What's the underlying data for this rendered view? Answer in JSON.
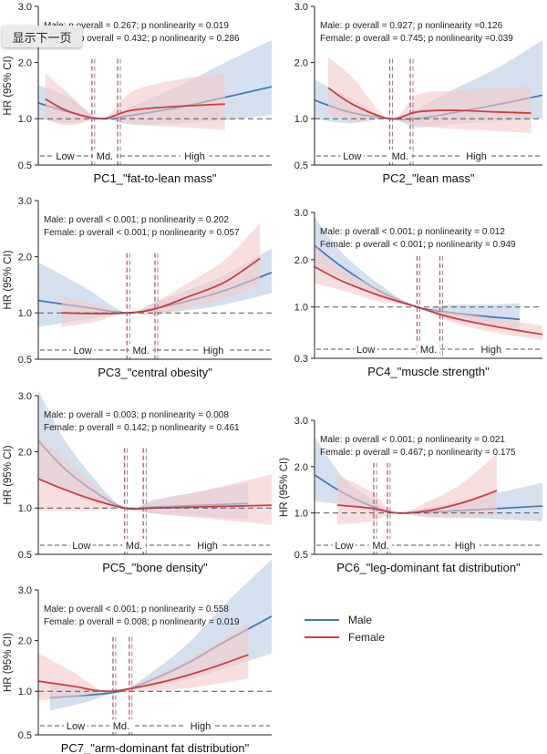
{
  "overlay_button": "显示下一页",
  "colors": {
    "male": "#4a78b5",
    "female": "#c94040",
    "male_band": "#c7d5e8",
    "female_band": "#f3c9c9"
  },
  "legend": [
    {
      "name": "Male",
      "color": "#4a78b5"
    },
    {
      "name": "Female",
      "color": "#c94040"
    }
  ],
  "chart_data": [
    {
      "type": "line",
      "title": "PC1_\"fat-to-lean mass\"",
      "ylabel": "HR (95% CI)",
      "ylim": [
        0.5,
        3.0
      ],
      "yticks": [
        "0.5",
        "1.0",
        "2.0",
        "3.0"
      ],
      "male_stats": "Male: p overall = 0.267; p nonlinearity = 0.019",
      "female_stats": "Female: p overall = 0.432; p nonlinearity = 0.286",
      "regions": [
        "Low",
        "Md.",
        "High"
      ],
      "series": [
        {
          "name": "Male",
          "x": [
            0,
            0.13,
            0.27,
            0.4,
            0.6,
            0.8,
            1.0
          ],
          "values": [
            1.28,
            1.12,
            1.0,
            1.06,
            1.2,
            1.38,
            1.57
          ],
          "lower": [
            1.0,
            0.92,
            1.0,
            0.9,
            0.92,
            0.97,
            1.07
          ],
          "upper": [
            1.6,
            1.38,
            1.0,
            1.22,
            1.58,
            2.0,
            2.4
          ]
        },
        {
          "name": "Female",
          "x": [
            0.03,
            0.13,
            0.27,
            0.4,
            0.6,
            0.8
          ],
          "values": [
            1.35,
            1.13,
            1.0,
            1.15,
            1.22,
            1.26
          ],
          "lower": [
            1.0,
            0.88,
            1.0,
            0.9,
            0.85,
            0.8
          ],
          "upper": [
            1.82,
            1.45,
            1.0,
            1.48,
            1.7,
            1.8
          ]
        }
      ]
    },
    {
      "type": "line",
      "title": "PC2_\"lean mass\"",
      "ylabel": "",
      "ylim": [
        0.5,
        3.0
      ],
      "yticks": [
        "0.5",
        "1.0",
        "2.0",
        "3.0"
      ],
      "male_stats": "Male: p overall = 0.927; p nonlinearity =0.126",
      "female_stats": "Female: p overall = 0.745; p nonlinearity =0.039",
      "regions": [
        "Low",
        "Md.",
        "High"
      ],
      "series": [
        {
          "name": "Male",
          "x": [
            0,
            0.15,
            0.33,
            0.45,
            0.6,
            0.8,
            1.0
          ],
          "values": [
            1.33,
            1.12,
            1.0,
            1.0,
            1.1,
            1.25,
            1.42
          ],
          "lower": [
            1.0,
            0.92,
            1.0,
            0.85,
            0.9,
            0.95,
            1.0
          ],
          "upper": [
            1.7,
            1.38,
            1.0,
            1.17,
            1.5,
            1.9,
            2.4
          ]
        },
        {
          "name": "Female",
          "x": [
            0.06,
            0.17,
            0.33,
            0.45,
            0.6,
            0.8,
            0.95
          ],
          "values": [
            1.55,
            1.25,
            1.0,
            1.12,
            1.15,
            1.12,
            1.1
          ],
          "lower": [
            1.1,
            0.95,
            1.0,
            0.88,
            0.82,
            0.78,
            0.74
          ],
          "upper": [
            2.1,
            1.72,
            1.0,
            1.42,
            1.5,
            1.55,
            1.58
          ]
        }
      ]
    },
    {
      "type": "line",
      "title": "PC3_\"central obesity\"",
      "ylabel": "HR (95% CI)",
      "ylim": [
        0.5,
        3.0
      ],
      "yticks": [
        "0.5",
        "1.0",
        "2.0",
        "3.0"
      ],
      "male_stats": "Male: p overall < 0.001; p nonlinearity = 0.202",
      "female_stats": "Female: p overall < 0.001; p nonlinearity = 0.057",
      "regions": [
        "Low",
        "Md.",
        "High"
      ],
      "series": [
        {
          "name": "Male",
          "x": [
            0,
            0.2,
            0.38,
            0.5,
            0.65,
            0.8,
            1.0
          ],
          "values": [
            1.22,
            1.1,
            1.0,
            1.08,
            1.22,
            1.4,
            1.72
          ],
          "lower": [
            0.75,
            0.88,
            1.0,
            1.0,
            1.05,
            1.15,
            1.35
          ],
          "upper": [
            1.9,
            1.45,
            1.0,
            1.18,
            1.42,
            1.68,
            2.15
          ]
        },
        {
          "name": "Female",
          "x": [
            0.1,
            0.25,
            0.38,
            0.5,
            0.65,
            0.8,
            0.95
          ],
          "values": [
            1.0,
            0.99,
            1.0,
            1.07,
            1.3,
            1.55,
            1.97
          ],
          "lower": [
            0.75,
            0.85,
            1.0,
            0.95,
            1.1,
            1.25,
            1.5
          ],
          "upper": [
            1.28,
            1.15,
            1.0,
            1.2,
            1.55,
            1.95,
            2.6
          ]
        }
      ]
    },
    {
      "type": "line",
      "title": "PC4_\"muscle strength\"",
      "ylabel": "",
      "ylim": [
        0.3,
        3.0
      ],
      "yticks": [
        "0.3",
        "1.0",
        "2.0",
        "3.0"
      ],
      "male_stats": "Male: p overall < 0.001; p nonlinearity = 0.012",
      "female_stats": "Female: p overall < 0.001; p nonlinearity = 0.949",
      "regions": [
        "Low",
        "Md.",
        "High"
      ],
      "series": [
        {
          "name": "Male",
          "x": [
            0,
            0.12,
            0.28,
            0.45,
            0.6,
            0.75,
            0.9
          ],
          "values": [
            2.3,
            1.85,
            1.35,
            1.0,
            0.88,
            0.8,
            0.74
          ],
          "lower": [
            1.85,
            1.6,
            1.22,
            1.0,
            0.72,
            0.6,
            0.5
          ],
          "upper": [
            2.9,
            2.15,
            1.5,
            1.0,
            1.05,
            1.05,
            1.08
          ]
        },
        {
          "name": "Female",
          "x": [
            0,
            0.12,
            0.28,
            0.45,
            0.6,
            0.8,
            1.0
          ],
          "values": [
            1.85,
            1.55,
            1.25,
            1.0,
            0.78,
            0.58,
            0.42
          ],
          "lower": [
            1.5,
            1.35,
            1.12,
            1.0,
            0.68,
            0.45,
            0.3
          ],
          "upper": [
            2.3,
            1.8,
            1.4,
            1.0,
            0.9,
            0.75,
            0.6
          ]
        }
      ]
    },
    {
      "type": "line",
      "title": "PC5_\"bone density\"",
      "ylabel": "HR (95% CI)",
      "ylim": [
        0.5,
        3.0
      ],
      "yticks": [
        "0.5",
        "1.0",
        "2.0",
        "3.0"
      ],
      "male_stats": "Male: p overall = 0.003; p nonlinearity = 0.008",
      "female_stats": "Female: p overall = 0.142; p nonlinearity = 0.461",
      "regions": [
        "Low",
        "Md.",
        "High"
      ],
      "series": [
        {
          "name": "Male",
          "x": [
            0,
            0.1,
            0.22,
            0.37,
            0.5,
            0.7,
            0.9
          ],
          "values": [
            2.2,
            1.75,
            1.35,
            1.0,
            1.02,
            1.05,
            1.08
          ],
          "lower": [
            1.5,
            1.35,
            1.12,
            1.0,
            0.9,
            0.85,
            0.8
          ],
          "upper": [
            3.1,
            2.3,
            1.62,
            1.0,
            1.15,
            1.3,
            1.45
          ]
        },
        {
          "name": "Female",
          "x": [
            0,
            0.1,
            0.22,
            0.37,
            0.5,
            0.7,
            1.0
          ],
          "values": [
            1.52,
            1.35,
            1.17,
            1.0,
            1.0,
            1.02,
            1.05
          ],
          "lower": [
            0.95,
            0.95,
            0.95,
            1.0,
            0.9,
            0.82,
            0.7
          ],
          "upper": [
            2.3,
            1.92,
            1.48,
            1.0,
            1.12,
            1.3,
            1.6
          ]
        }
      ]
    },
    {
      "type": "line",
      "title": "PC6_\"leg-dominant fat distribution\"",
      "ylabel": "HR (95% CI)",
      "ylim": [
        0.5,
        3.0
      ],
      "yticks": [
        "0.5",
        "1.0",
        "2.0",
        "3.0"
      ],
      "male_stats": "Male: p overall < 0.001; p nonlinearity = 0.021",
      "female_stats": "Female: p overall = 0.467; p nonlinearity = 0.175",
      "regions": [
        "Low",
        "Md.",
        "High"
      ],
      "series": [
        {
          "name": "Male",
          "x": [
            0,
            0.12,
            0.25,
            0.36,
            0.5,
            0.75,
            1.0
          ],
          "values": [
            1.82,
            1.45,
            1.15,
            1.0,
            1.02,
            1.08,
            1.15
          ],
          "lower": [
            1.25,
            1.18,
            1.02,
            1.0,
            0.92,
            0.88,
            0.82
          ],
          "upper": [
            2.65,
            1.8,
            1.3,
            1.0,
            1.12,
            1.38,
            1.65
          ]
        },
        {
          "name": "Female",
          "x": [
            0.1,
            0.25,
            0.36,
            0.5,
            0.65,
            0.8
          ],
          "values": [
            1.17,
            1.1,
            1.0,
            1.05,
            1.22,
            1.48
          ],
          "lower": [
            0.75,
            0.82,
            1.0,
            0.9,
            0.9,
            0.95
          ],
          "upper": [
            1.82,
            1.45,
            1.0,
            1.25,
            1.65,
            2.28
          ]
        }
      ]
    },
    {
      "type": "line",
      "title": "PC7_\"arm-dominant fat distribution\"",
      "ylabel": "HR (95% CI)",
      "ylim": [
        0.5,
        3.0
      ],
      "yticks": [
        "0.5",
        "1.0",
        "2.0",
        "3.0"
      ],
      "male_stats": "Male: p overall < 0.001; p nonlinearity = 0.558",
      "female_stats": "Female: p overall = 0.008; p nonlinearity = 0.019",
      "regions": [
        "Low",
        "Md.",
        "High"
      ],
      "series": [
        {
          "name": "Male",
          "x": [
            0.05,
            0.2,
            0.35,
            0.5,
            0.65,
            0.8,
            1.0
          ],
          "values": [
            0.87,
            0.92,
            1.0,
            1.25,
            1.58,
            1.98,
            2.48
          ],
          "lower": [
            0.62,
            0.78,
            1.0,
            1.1,
            1.25,
            1.45,
            1.75
          ],
          "upper": [
            1.2,
            1.08,
            1.0,
            1.42,
            1.98,
            2.72,
            3.6
          ]
        },
        {
          "name": "Female",
          "x": [
            0,
            0.15,
            0.3,
            0.5,
            0.7,
            0.9
          ],
          "values": [
            1.2,
            1.1,
            1.0,
            1.15,
            1.4,
            1.72
          ],
          "lower": [
            0.82,
            0.88,
            1.0,
            1.0,
            1.1,
            1.25
          ],
          "upper": [
            1.75,
            1.38,
            1.0,
            1.3,
            1.78,
            2.35
          ]
        }
      ]
    }
  ]
}
